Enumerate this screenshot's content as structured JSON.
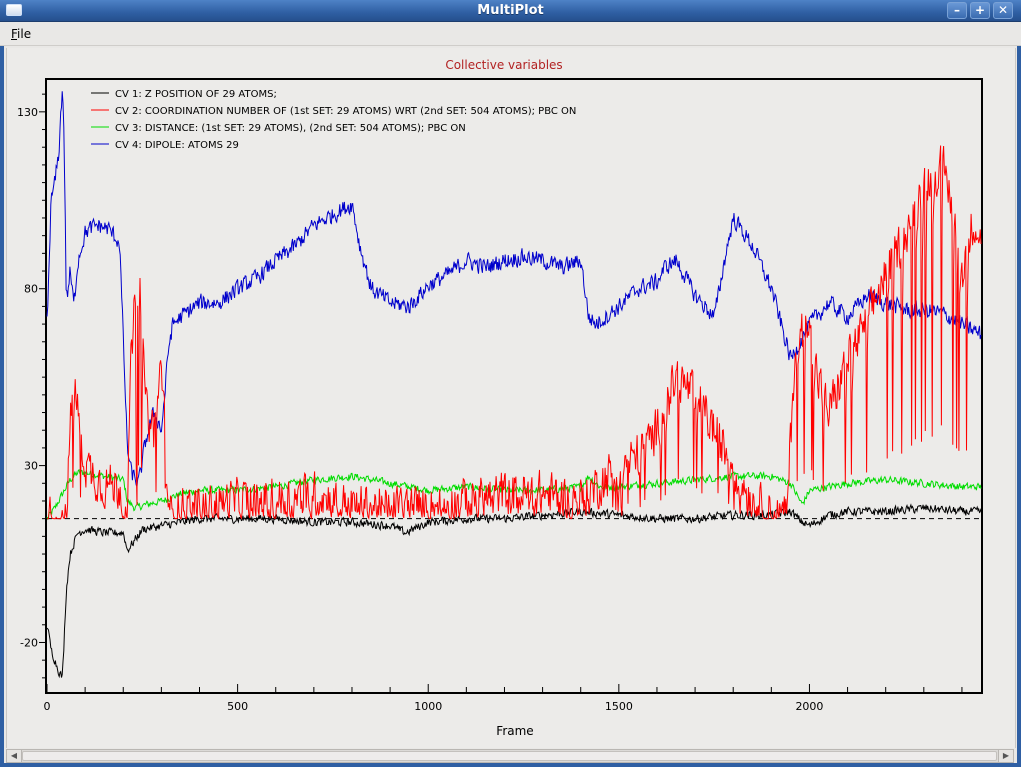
{
  "window": {
    "title": "MultiPlot",
    "buttons": {
      "minimize": "–",
      "maximize": "+",
      "close": "✕"
    }
  },
  "menu": {
    "file_first": "F",
    "file_rest": "ile"
  },
  "colors": {
    "cv1": "#000000",
    "cv2": "#ff0000",
    "cv3": "#00dd00",
    "cv4": "#0000cc",
    "title": "#b22222"
  },
  "chart_data": {
    "type": "line",
    "title": "Collective variables",
    "xlabel": "Frame",
    "ylabel": "",
    "xlim": [
      0,
      2450
    ],
    "ylim": [
      -34,
      139
    ],
    "xticks": [
      "0",
      "500",
      "1000",
      "1500",
      "2000"
    ],
    "xtick_values": [
      0,
      500,
      1000,
      1500,
      2000
    ],
    "yticks": [
      "-20",
      "30",
      "80",
      "130"
    ],
    "ytick_values": [
      -20,
      30,
      80,
      130
    ],
    "reference_line": 15,
    "legend_position": "top-left",
    "series": [
      {
        "name": "CV 1: Z POSITION OF 29 ATOMS;",
        "color": "#000000",
        "noise": 1.5,
        "x": [
          0,
          10,
          20,
          30,
          40,
          50,
          60,
          80,
          100,
          150,
          200,
          210,
          250,
          300,
          350,
          400,
          500,
          600,
          700,
          800,
          900,
          940,
          1000,
          1100,
          1200,
          1300,
          1400,
          1500,
          1600,
          1700,
          1800,
          1900,
          1950,
          1980,
          2000,
          2050,
          2100,
          2200,
          2300,
          2400,
          2450
        ],
        "y": [
          -15,
          -22,
          -25,
          -28,
          -30,
          -5,
          5,
          11,
          12,
          11,
          11,
          6,
          12,
          13,
          14,
          15,
          15,
          15,
          14,
          14,
          13,
          11,
          14,
          15,
          15,
          16,
          17,
          16,
          15,
          15,
          16,
          16,
          17,
          14,
          13,
          16,
          17,
          17,
          18,
          17,
          17
        ]
      },
      {
        "name": "CV 2: COORDINATION NUMBER OF (1st SET: 29 ATOMS) WRT (2nd SET: 504 ATOMS);  PBC ON",
        "color": "#ff0000",
        "noise": 8,
        "x": [
          0,
          50,
          60,
          70,
          80,
          100,
          120,
          140,
          190,
          210,
          220,
          240,
          260,
          280,
          300,
          320,
          360,
          400,
          500,
          600,
          700,
          800,
          900,
          1000,
          1100,
          1200,
          1300,
          1400,
          1450,
          1500,
          1550,
          1600,
          1650,
          1700,
          1750,
          1800,
          1850,
          1900,
          1940,
          1960,
          2000,
          2020,
          2050,
          2100,
          2150,
          2200,
          2250,
          2300,
          2350,
          2380,
          2400,
          2430,
          2450
        ],
        "y": [
          15,
          15,
          40,
          55,
          45,
          30,
          28,
          25,
          24,
          15,
          60,
          90,
          45,
          40,
          60,
          15,
          18,
          18,
          20,
          20,
          22,
          18,
          18,
          18,
          20,
          22,
          22,
          20,
          25,
          30,
          33,
          40,
          55,
          50,
          40,
          30,
          20,
          16,
          15,
          60,
          75,
          55,
          45,
          60,
          70,
          85,
          95,
          110,
          115,
          100,
          85,
          100,
          95
        ]
      },
      {
        "name": "CV 3: DISTANCE: (1st SET: 29 ATOMS), (2nd SET: 504 ATOMS);  PBC ON",
        "color": "#00dd00",
        "noise": 1.3,
        "x": [
          0,
          20,
          40,
          60,
          80,
          100,
          150,
          200,
          210,
          230,
          260,
          300,
          350,
          400,
          500,
          600,
          700,
          800,
          900,
          1000,
          1100,
          1200,
          1300,
          1400,
          1420,
          1450,
          1500,
          1600,
          1700,
          1800,
          1900,
          1950,
          1980,
          2000,
          2100,
          2200,
          2300,
          2400,
          2450
        ],
        "y": [
          15,
          18,
          22,
          26,
          28,
          28,
          27,
          26,
          20,
          18,
          19,
          20,
          22,
          23,
          23,
          24,
          26,
          27,
          25,
          23,
          24,
          23,
          23,
          24,
          27,
          24,
          24,
          25,
          26,
          27,
          27,
          25,
          19,
          23,
          25,
          26,
          25,
          24,
          24
        ]
      },
      {
        "name": "CV 4: DIPOLE: ATOMS 29",
        "color": "#0000cc",
        "noise": 3,
        "x": [
          0,
          10,
          20,
          30,
          40,
          45,
          50,
          55,
          60,
          70,
          80,
          100,
          130,
          160,
          190,
          210,
          220,
          240,
          260,
          280,
          300,
          320,
          330,
          350,
          400,
          450,
          500,
          550,
          600,
          650,
          700,
          750,
          800,
          820,
          850,
          900,
          950,
          1000,
          1050,
          1100,
          1150,
          1200,
          1250,
          1300,
          1350,
          1400,
          1420,
          1440,
          1500,
          1550,
          1600,
          1620,
          1650,
          1700,
          1750,
          1780,
          1800,
          1850,
          1900,
          1950,
          1980,
          2000,
          2050,
          2100,
          2150,
          2200,
          2250,
          2300,
          2350,
          2400,
          2450
        ],
        "y": [
          70,
          105,
          110,
          118,
          138,
          120,
          75,
          80,
          85,
          75,
          88,
          96,
          98,
          97,
          93,
          35,
          28,
          25,
          38,
          45,
          40,
          65,
          70,
          72,
          76,
          76,
          80,
          83,
          88,
          92,
          98,
          101,
          104,
          92,
          80,
          76,
          75,
          81,
          84,
          88,
          86,
          88,
          89,
          88,
          86,
          88,
          72,
          70,
          75,
          80,
          82,
          86,
          88,
          78,
          72,
          90,
          100,
          92,
          80,
          60,
          66,
          70,
          76,
          72,
          78,
          76,
          74,
          74,
          73,
          70,
          67
        ]
      }
    ]
  }
}
